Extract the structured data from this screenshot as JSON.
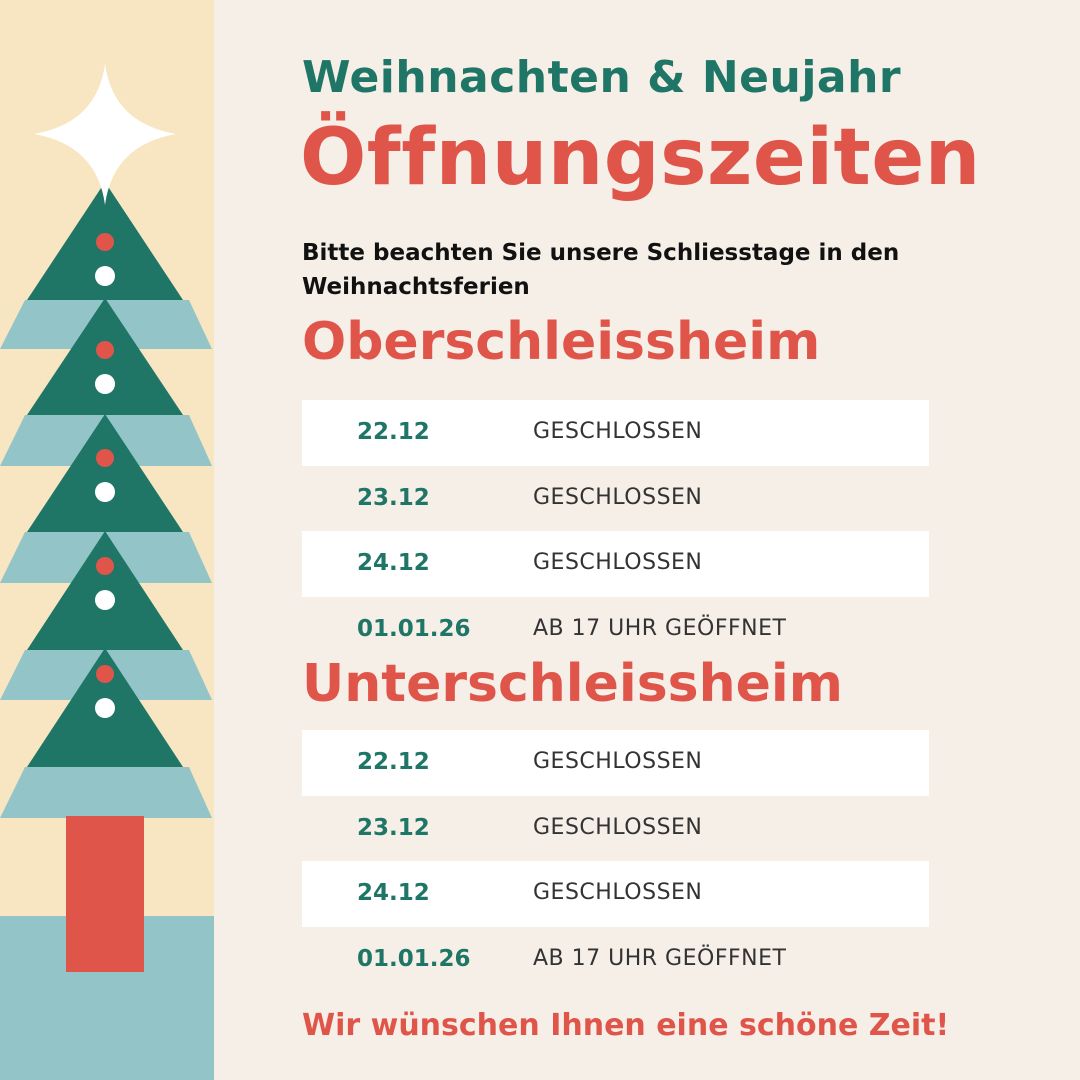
{
  "header": {
    "pre_title": "Weihnachten & Neujahr",
    "title": "Öffnungszeiten",
    "notice": "Bitte beachten Sie unsere Schliesstage in den Weihnachtsferien"
  },
  "locations": [
    {
      "name": "Oberschleissheim",
      "rows": [
        {
          "date": "22.12",
          "status": "GESCHLOSSEN"
        },
        {
          "date": "23.12",
          "status": "GESCHLOSSEN"
        },
        {
          "date": "24.12",
          "status": "GESCHLOSSEN"
        },
        {
          "date": "01.01.26",
          "status": "AB 17 UHR GEÖFFNET"
        }
      ]
    },
    {
      "name": "Unterschleissheim",
      "rows": [
        {
          "date": "22.12",
          "status": "GESCHLOSSEN"
        },
        {
          "date": "23.12",
          "status": "GESCHLOSSEN"
        },
        {
          "date": "24.12",
          "status": "GESCHLOSSEN"
        },
        {
          "date": "01.01.26",
          "status": "AB 17 UHR GEÖFFNET"
        }
      ]
    }
  ],
  "footer": {
    "message": "Wir wünschen Ihnen eine schöne Zeit!"
  },
  "colors": {
    "background": "#f5efe8",
    "green": "#1f7566",
    "red": "#e0554a",
    "light_blue": "#93c4c8",
    "cream": "#f8e6c2"
  },
  "decoration": {
    "illustration": "christmas-tree-icon",
    "topper": "star-icon"
  }
}
